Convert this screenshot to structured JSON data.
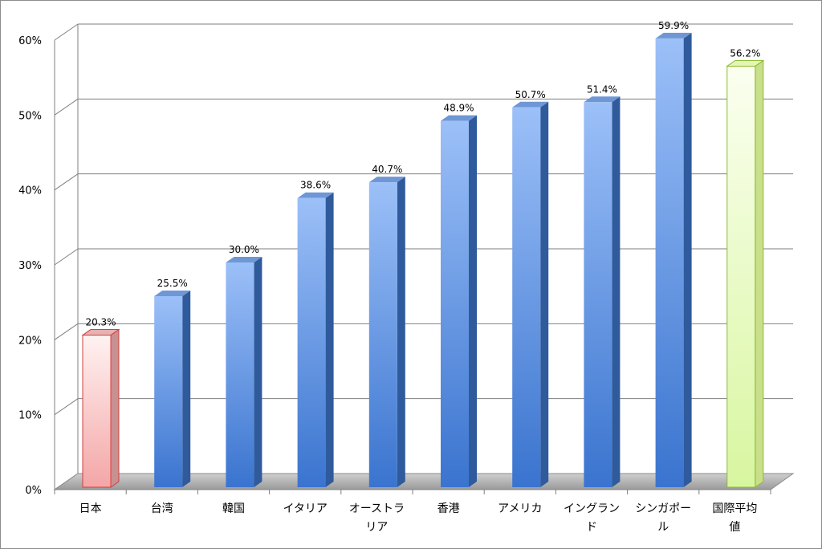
{
  "chart_data": {
    "type": "bar",
    "title": "",
    "xlabel": "",
    "ylabel": "",
    "ylim": [
      0,
      60
    ],
    "y_ticks": [
      "0%",
      "10%",
      "20%",
      "30%",
      "40%",
      "50%",
      "60%"
    ],
    "grid": true,
    "style": "3d-column",
    "categories": [
      [
        "日本"
      ],
      [
        "台湾"
      ],
      [
        "韓国"
      ],
      [
        "イタリア"
      ],
      [
        "オーストラ",
        "リア"
      ],
      [
        "香港"
      ],
      [
        "アメリカ"
      ],
      [
        "イングラン",
        "ド"
      ],
      [
        "シンガポー",
        "ル"
      ],
      [
        "国際平均",
        "値"
      ]
    ],
    "values": [
      20.3,
      25.5,
      30.0,
      38.6,
      40.7,
      48.9,
      50.7,
      51.4,
      59.9,
      56.2
    ],
    "data_labels": [
      "20.3%",
      "25.5%",
      "30.0%",
      "38.6%",
      "40.7%",
      "48.9%",
      "50.7%",
      "51.4%",
      "59.9%",
      "56.2%"
    ],
    "colors": {
      "highlight_japan": "#f4a6a6",
      "highlight_average": "#e4f9b4",
      "default": "#5b8fd8"
    },
    "bar_styles": [
      "red",
      "blue",
      "blue",
      "blue",
      "blue",
      "blue",
      "blue",
      "blue",
      "blue",
      "green"
    ]
  }
}
